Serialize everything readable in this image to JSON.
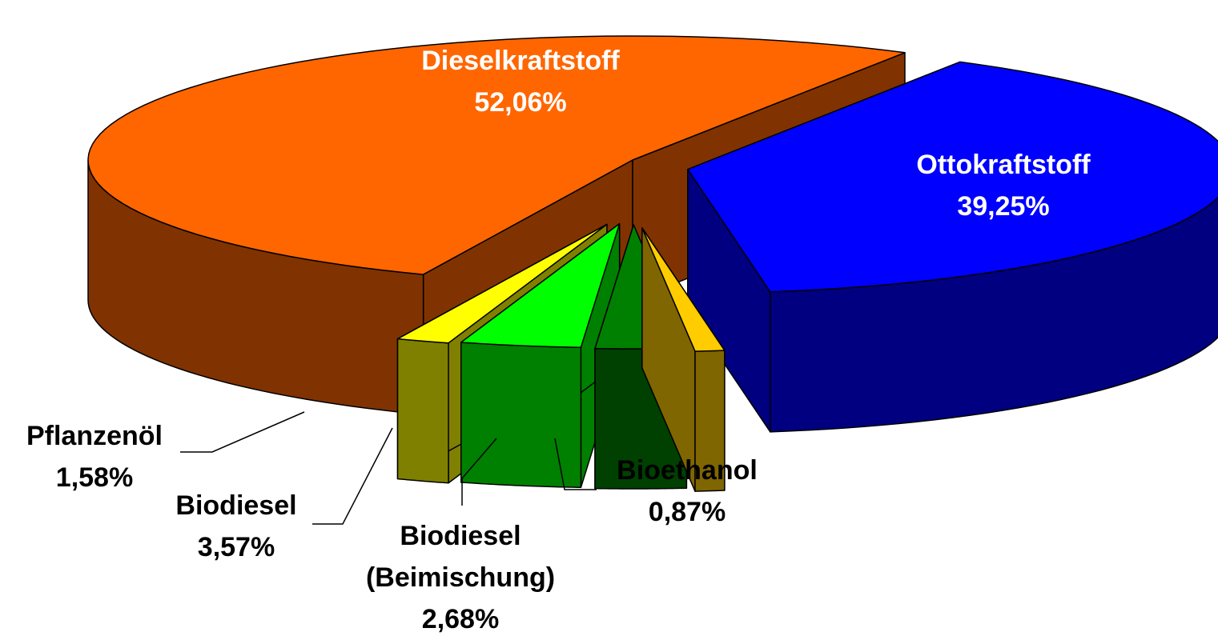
{
  "chart_data": {
    "type": "pie3d",
    "categories": [
      "Dieselkraftstoff",
      "Ottokraftstoff",
      "Pflanzenöl",
      "Biodiesel",
      "Biodiesel (Beimischung)",
      "Bioethanol"
    ],
    "values": [
      52.06,
      39.25,
      1.58,
      3.57,
      2.68,
      0.87
    ],
    "value_labels": [
      "52,06%",
      "39,25%",
      "1,58%",
      "3,57%",
      "2,68%",
      "0,87%"
    ],
    "colors": [
      "#ff6600",
      "#0000ff",
      "#ffff00",
      "#00ff00",
      "#008000",
      "#ffcc00"
    ]
  }
}
